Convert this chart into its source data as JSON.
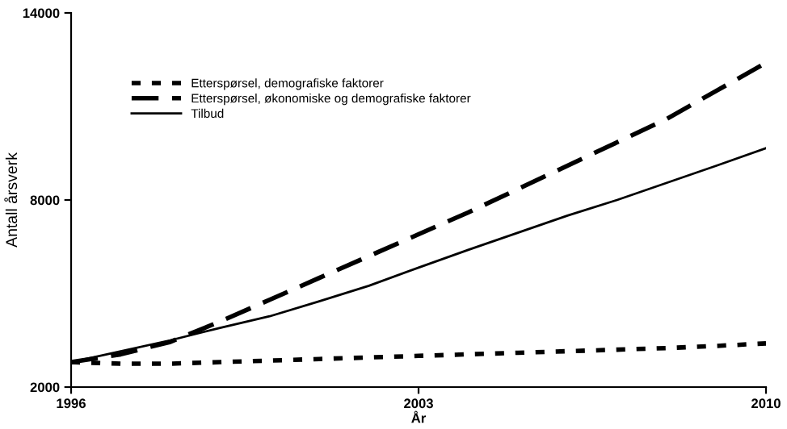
{
  "chart_data": {
    "type": "line",
    "xlabel": "År",
    "ylabel": "Antall årsverk",
    "x": [
      1996,
      1997,
      1998,
      1999,
      2000,
      2001,
      2002,
      2003,
      2004,
      2005,
      2006,
      2007,
      2008,
      2009,
      2010
    ],
    "series": [
      {
        "name": "Etterspørsel, demografiske faktorer",
        "color": "#000000",
        "line_style": "dotted",
        "values": [
          2800,
          2750,
          2750,
          2800,
          2850,
          2900,
          2950,
          3000,
          3050,
          3100,
          3150,
          3200,
          3250,
          3320,
          3400
        ]
      },
      {
        "name": "Etterspørsel, økonomiske og demografiske faktorer",
        "color": "#000000",
        "line_style": "dashed",
        "values": [
          2800,
          3050,
          3450,
          4100,
          4800,
          5500,
          6200,
          6900,
          7600,
          8350,
          9100,
          9850,
          10600,
          11500,
          12400
        ]
      },
      {
        "name": "Tilbud",
        "color": "#000000",
        "line_style": "solid",
        "values": [
          2800,
          3150,
          3500,
          3900,
          4270,
          4750,
          5250,
          5830,
          6400,
          6950,
          7500,
          8000,
          8550,
          9100,
          9660
        ]
      }
    ],
    "xlim": [
      1996,
      2010
    ],
    "xticks": [
      1996,
      2003,
      2010
    ],
    "ylim": [
      2000,
      14000
    ],
    "yticks": [
      2000,
      8000,
      14000
    ],
    "grid": false,
    "legend": "top left",
    "marker": "none"
  }
}
